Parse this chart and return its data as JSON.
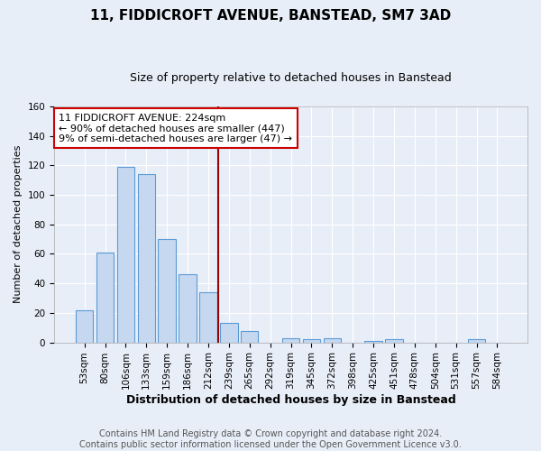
{
  "title": "11, FIDDICROFT AVENUE, BANSTEAD, SM7 3AD",
  "subtitle": "Size of property relative to detached houses in Banstead",
  "xlabel": "Distribution of detached houses by size in Banstead",
  "ylabel": "Number of detached properties",
  "categories": [
    "53sqm",
    "80sqm",
    "106sqm",
    "133sqm",
    "159sqm",
    "186sqm",
    "212sqm",
    "239sqm",
    "265sqm",
    "292sqm",
    "319sqm",
    "345sqm",
    "372sqm",
    "398sqm",
    "425sqm",
    "451sqm",
    "478sqm",
    "504sqm",
    "531sqm",
    "557sqm",
    "584sqm"
  ],
  "values": [
    22,
    61,
    119,
    114,
    70,
    46,
    34,
    13,
    8,
    0,
    3,
    2,
    3,
    0,
    1,
    2,
    0,
    0,
    0,
    2,
    0
  ],
  "bar_color": "#c5d8f0",
  "bar_edge_color": "#5b9bd5",
  "vline_color": "#990000",
  "vline_x_index": 6.5,
  "annotation_text": "11 FIDDICROFT AVENUE: 224sqm\n← 90% of detached houses are smaller (447)\n9% of semi-detached houses are larger (47) →",
  "annotation_box_color": "#ffffff",
  "annotation_box_edge": "#cc0000",
  "background_color": "#e8eef8",
  "plot_bg_color": "#e8eef8",
  "grid_color": "#ffffff",
  "ylim": [
    0,
    160
  ],
  "yticks": [
    0,
    20,
    40,
    60,
    80,
    100,
    120,
    140,
    160
  ],
  "footer": "Contains HM Land Registry data © Crown copyright and database right 2024.\nContains public sector information licensed under the Open Government Licence v3.0.",
  "title_fontsize": 11,
  "subtitle_fontsize": 9,
  "xlabel_fontsize": 9,
  "ylabel_fontsize": 8,
  "tick_fontsize": 7.5,
  "footer_fontsize": 7,
  "annot_fontsize": 8
}
